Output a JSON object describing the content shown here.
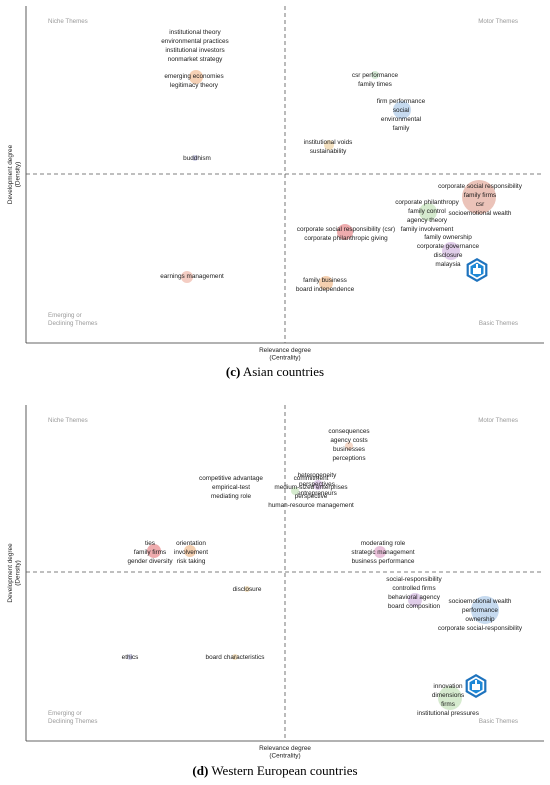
{
  "chart_data": [
    {
      "type": "scatter",
      "caption_letter": "(c)",
      "caption_text": "Asian countries",
      "xlabel": "Relevance degree\n(Centrality)",
      "ylabel": "Development degree\n(Density)",
      "quadrants": {
        "top_left": "Niche Themes",
        "top_right": "Motor Themes",
        "bottom_left": "Emerging or\nDeclining Themes",
        "bottom_right": "Basic Themes"
      },
      "clusters": [
        {
          "labels": [
            "institutional theory",
            "environmental practices",
            "institutional investors",
            "nonmarket strategy"
          ],
          "color": null
        },
        {
          "labels": [
            "emerging economies",
            "legitimacy theory"
          ],
          "color": "#f4c9a8"
        },
        {
          "labels": [
            "buddhism"
          ],
          "color": "#c9c9e6"
        },
        {
          "labels": [
            "csr performance",
            "family times"
          ],
          "color": "#cfe8d0"
        },
        {
          "labels": [
            "firm performance",
            "social",
            "environmental",
            "family"
          ],
          "color": "#bcd3ec"
        },
        {
          "labels": [
            "institutional voids",
            "sustainability"
          ],
          "color": "#f2dcb5"
        },
        {
          "labels": [
            "corporate social responsibility",
            "family firms",
            "csr",
            "socioemotional wealth"
          ],
          "color": "#e8b9ad"
        },
        {
          "labels": [
            "corporate philanthropy",
            "family control",
            "agency theory",
            "family involvement"
          ],
          "color": "#cfe8c7"
        },
        {
          "labels": [
            "family ownership",
            "corporate governance",
            "disclosure",
            "malaysia"
          ],
          "color": "#dcc6e6"
        },
        {
          "labels": [
            "corporate social responsibility (csr)",
            "corporate philanthropic giving"
          ],
          "color": "#ec9ea0"
        },
        {
          "labels": [
            "earnings management"
          ],
          "color": "#f2c4b8"
        },
        {
          "labels": [
            "family business",
            "board independence"
          ],
          "color": "#f3c8a2"
        }
      ]
    },
    {
      "type": "scatter",
      "caption_letter": "(d)",
      "caption_text": "Western European countries",
      "xlabel": "Relevance degree\n(Centrality)",
      "ylabel": "Development degree\n(Density)",
      "quadrants": {
        "top_left": "Niche Themes",
        "top_right": "Motor Themes",
        "bottom_left": "Emerging or\nDeclining Themes",
        "bottom_right": "Basic Themes"
      },
      "clusters": [
        {
          "labels": [
            "consequences",
            "agency costs",
            "businesses",
            "perceptions"
          ],
          "color": "#f4d2bf"
        },
        {
          "labels": [
            "heterogeneity",
            "perspectives",
            "entrepreneurs"
          ],
          "color": "#dcc6e6"
        },
        {
          "labels": [
            "competitive advantage",
            "empirical-test",
            "mediating role"
          ],
          "color": null
        },
        {
          "labels": [
            "commitment",
            "medium-sized enterprises",
            "perspective",
            "human-resource management"
          ],
          "color": "#cfe8c7"
        },
        {
          "labels": [
            "ties",
            "family firms",
            "gender diversity"
          ],
          "color": "#ec9ea0"
        },
        {
          "labels": [
            "orientation",
            "involvement",
            "risk taking"
          ],
          "color": "#f3c8a2"
        },
        {
          "labels": [
            "moderating role",
            "strategic management",
            "business performance"
          ],
          "color": "#e8b9d6"
        },
        {
          "labels": [
            "disclosure"
          ],
          "color": "#f2dcb5"
        },
        {
          "labels": [
            "social-responsibility",
            "controlled firms",
            "behavioral agency",
            "board composition"
          ],
          "color": "#dcc6e6"
        },
        {
          "labels": [
            "socioemotional wealth",
            "performance",
            "ownership",
            "corporate social-responsibility"
          ],
          "color": "#bcd3ec"
        },
        {
          "labels": [
            "ethics"
          ],
          "color": "#c9c9e6"
        },
        {
          "labels": [
            "board characteristics"
          ],
          "color": "#f2dcb5"
        },
        {
          "labels": [
            "innovation",
            "dimensions",
            "firms",
            "institutional pressures"
          ],
          "color": "#cfe8c7"
        }
      ]
    }
  ]
}
